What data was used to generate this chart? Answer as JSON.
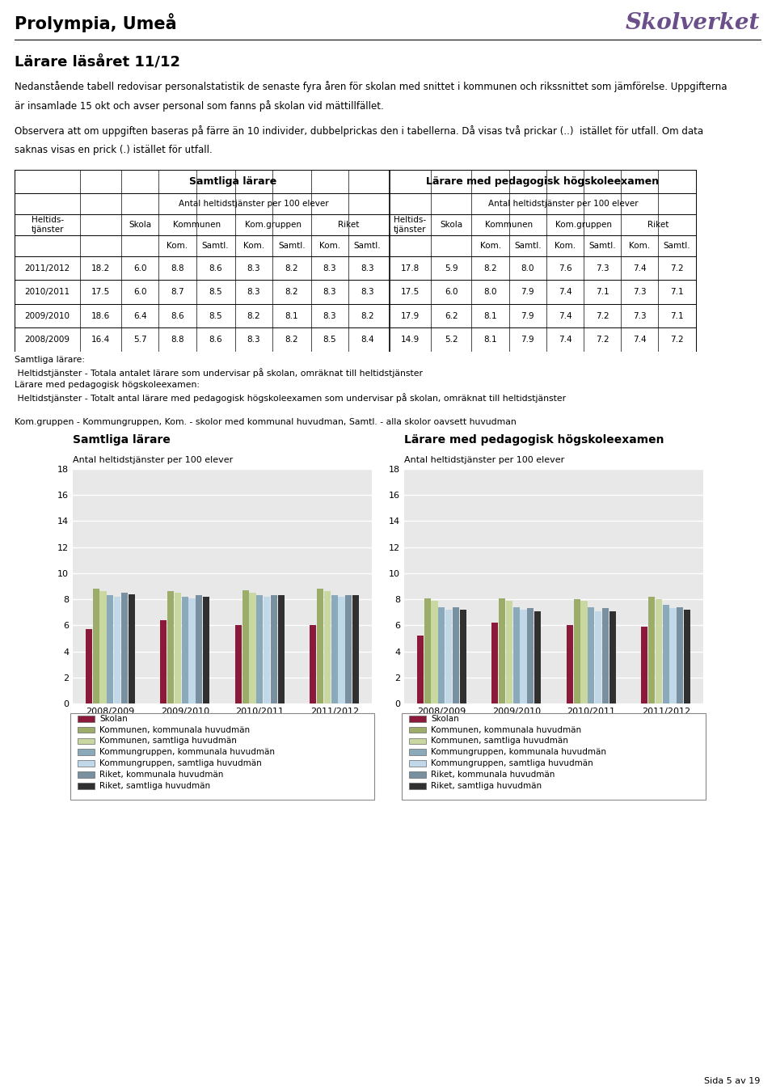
{
  "title": "Prolympia, Umeå",
  "section_title": "Lärare läsåret 11/12",
  "intro_text": "Nedanstående tabell redovisar personalstatistik de senaste fyra åren för skolan med snittet i kommunen och rikssnittet som jämförelse. Uppgifterna är insamlade 15 okt och avser personal som fanns på skolan vid mättillfället.",
  "obs_text": "Observera att om uppgiften baseras på färre än 10 individer, dubbelprickas den i tabellerna. Då visas två prickar (..)  istället för utfall. Om data saknas visas en prick (.) istället för utfall.",
  "years": [
    "2011/2012",
    "2010/2011",
    "2009/2010",
    "2008/2009"
  ],
  "samtliga_data": {
    "heltids": [
      18.2,
      17.5,
      18.6,
      16.4
    ],
    "skola": [
      6.0,
      6.0,
      6.4,
      5.7
    ],
    "kom_kom": [
      8.8,
      8.7,
      8.6,
      8.8
    ],
    "kom_samtl": [
      8.6,
      8.5,
      8.5,
      8.6
    ],
    "komgr_kom": [
      8.3,
      8.3,
      8.2,
      8.3
    ],
    "komgr_samtl": [
      8.2,
      8.2,
      8.1,
      8.2
    ],
    "riket_kom": [
      8.3,
      8.3,
      8.3,
      8.5
    ],
    "riket_samtl": [
      8.3,
      8.3,
      8.2,
      8.4
    ]
  },
  "pedagogisk_data": {
    "heltids": [
      17.8,
      17.5,
      17.9,
      14.9
    ],
    "skola": [
      5.9,
      6.0,
      6.2,
      5.2
    ],
    "kom_kom": [
      8.2,
      8.0,
      8.1,
      8.1
    ],
    "kom_samtl": [
      8.0,
      7.9,
      7.9,
      7.9
    ],
    "komgr_kom": [
      7.6,
      7.4,
      7.4,
      7.4
    ],
    "komgr_samtl": [
      7.3,
      7.1,
      7.2,
      7.2
    ],
    "riket_kom": [
      7.4,
      7.3,
      7.3,
      7.4
    ],
    "riket_samtl": [
      7.2,
      7.1,
      7.1,
      7.2
    ]
  },
  "chart_years": [
    "2008/2009",
    "2009/2010",
    "2010/2011",
    "2011/2012"
  ],
  "samtliga_chart": {
    "skola": [
      5.7,
      6.4,
      6.0,
      6.0
    ],
    "kom_kom": [
      8.8,
      8.6,
      8.7,
      8.8
    ],
    "kom_samtl": [
      8.6,
      8.5,
      8.5,
      8.6
    ],
    "komgr_kom": [
      8.3,
      8.2,
      8.3,
      8.3
    ],
    "komgr_samtl": [
      8.2,
      8.1,
      8.2,
      8.2
    ],
    "riket_kom": [
      8.5,
      8.3,
      8.3,
      8.3
    ],
    "riket_samtl": [
      8.4,
      8.2,
      8.3,
      8.3
    ]
  },
  "pedagogisk_chart": {
    "skola": [
      5.2,
      6.2,
      6.0,
      5.9
    ],
    "kom_kom": [
      8.1,
      8.1,
      8.0,
      8.2
    ],
    "kom_samtl": [
      7.9,
      7.9,
      7.9,
      8.0
    ],
    "komgr_kom": [
      7.4,
      7.4,
      7.4,
      7.6
    ],
    "komgr_samtl": [
      7.2,
      7.2,
      7.1,
      7.3
    ],
    "riket_kom": [
      7.4,
      7.3,
      7.3,
      7.4
    ],
    "riket_samtl": [
      7.2,
      7.1,
      7.1,
      7.2
    ]
  },
  "bar_colors": {
    "skola": "#8B1A3A",
    "kom_kom": "#9CAD6A",
    "kom_samtl": "#C8D8A0",
    "komgr_kom": "#8AAABB",
    "komgr_samtl": "#C0D8E8",
    "riket_kom": "#7890A0",
    "riket_samtl": "#303030"
  },
  "legend_labels": [
    "Skolan",
    "Kommunen, kommunala huvudmän",
    "Kommunen, samtliga huvudmän",
    "Kommungruppen, kommunala huvudmän",
    "Kommungruppen, samtliga huvudmän",
    "Riket, kommunala huvudmän",
    "Riket, samtliga huvudmän"
  ],
  "footnote_lines": [
    "Samtliga lärare:",
    " Heltidstjänster - Totala antalet lärare som undervisar på skolan, omräknat till heltidstjänster",
    "Lärare med pedagogisk högskoleexamen:",
    " Heltidstjänster - Totalt antal lärare med pedagogisk högskoleexamen som undervisar på skolan, omräknat till heltidstjänster",
    "",
    "Kom.gruppen - Kommungruppen, Kom. - skolor med kommunal huvudman, Samtl. - alla skolor oavsett huvudman"
  ],
  "chart_title_left": "Samtliga lärare",
  "chart_subtitle_left": "Antal heltidstjänster per 100 elever",
  "chart_title_right": "Lärare med pedagogisk högskoleexamen",
  "chart_subtitle_right": "Antal heltidstjänster per 100 elever",
  "ylim": [
    0,
    18
  ],
  "yticks": [
    0,
    2,
    4,
    6,
    8,
    10,
    12,
    14,
    16,
    18
  ],
  "page_text": "Sida 5 av 19",
  "skolverket_text": "Skolverket"
}
